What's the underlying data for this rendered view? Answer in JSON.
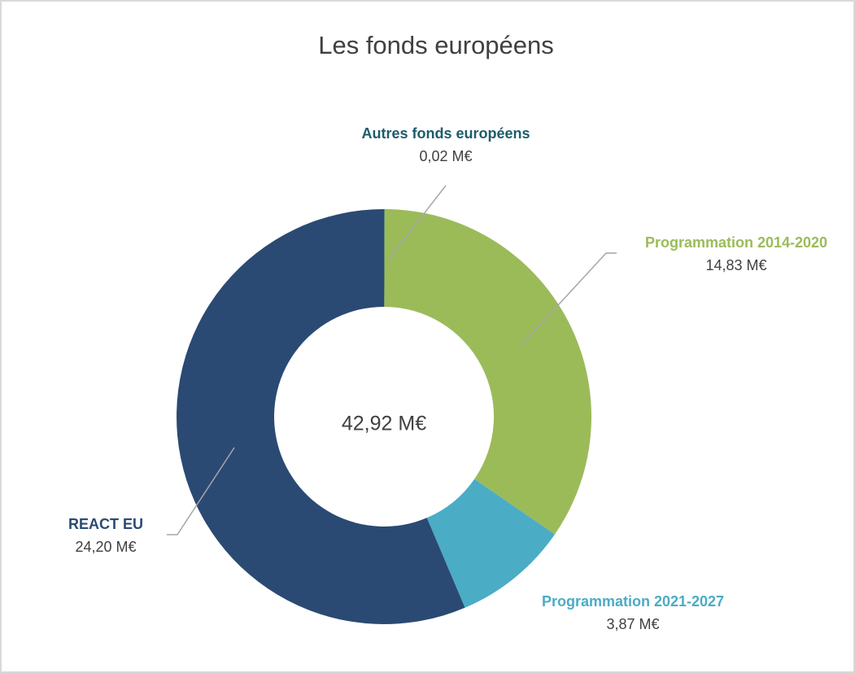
{
  "chart_data": {
    "type": "donut",
    "title": "Les fonds européens",
    "categories": [
      "Autres fonds européens",
      "Programmation 2014-2020",
      "Programmation 2021-2027",
      "REACT EU"
    ],
    "values": [
      0.02,
      14.83,
      3.87,
      24.2
    ],
    "value_labels": [
      "0,02 M€",
      "14,83 M€",
      "3,87 M€",
      "24,20 M€"
    ],
    "colors": [
      "#1d5c6b",
      "#9bbb59",
      "#4bacc6",
      "#2a4a73"
    ],
    "center_label": "42,92 M€"
  }
}
